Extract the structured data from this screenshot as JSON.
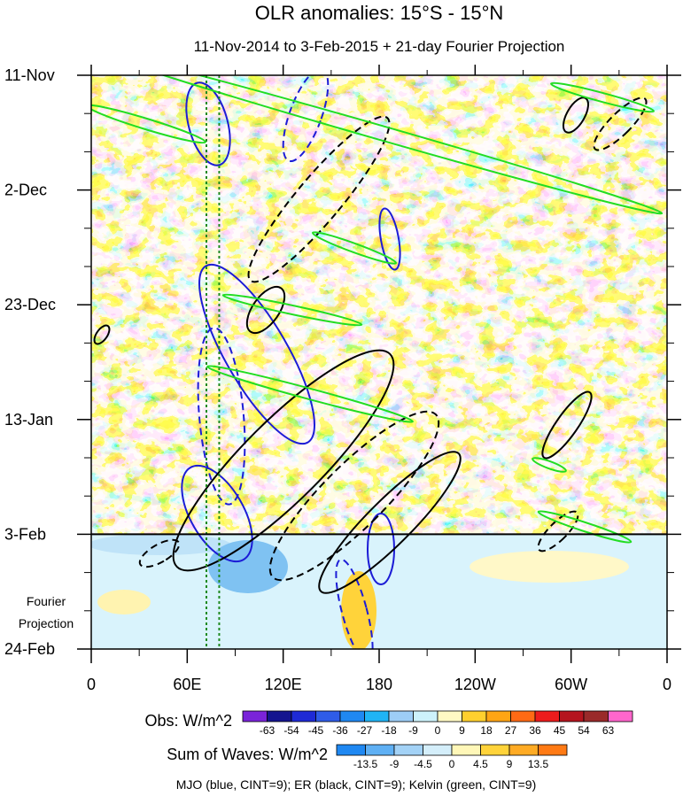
{
  "chart_data": {
    "type": "heatmap",
    "title": "OLR anomalies: 15°S - 15°N",
    "subtitle": "11-Nov-2014 to 3-Feb-2015 + 21-day Fourier Projection",
    "y_tick_labels": [
      "11-Nov",
      "2-Dec",
      "23-Dec",
      "13-Jan",
      "3-Feb",
      "24-Feb"
    ],
    "y_tick_days": [
      0,
      21,
      42,
      63,
      84,
      105
    ],
    "x_tick_labels": [
      "0",
      "60E",
      "120E",
      "180",
      "120W",
      "60W",
      "0"
    ],
    "x_tick_lons": [
      0,
      60,
      120,
      180,
      240,
      300,
      360
    ],
    "x_range": [
      0,
      360
    ],
    "y_range_days": [
      0,
      105
    ],
    "observation_end_day": 84,
    "projection_label_1": "Fourier",
    "projection_label_2": "Projection",
    "reference_longitudes": [
      72,
      80
    ],
    "obs_colorbar": {
      "label": "Obs: W/m^2",
      "ticks": [
        "-63",
        "-54",
        "-45",
        "-36",
        "-27",
        "-18",
        "-9",
        "0",
        "9",
        "18",
        "27",
        "36",
        "45",
        "54",
        "63"
      ],
      "colors": [
        "#7a23d9",
        "#14148f",
        "#1e2ad6",
        "#2f5ce8",
        "#1f88f2",
        "#20b4f5",
        "#9dcdf6",
        "#cdf2fb",
        "#fff9c4",
        "#ffd02e",
        "#ffa514",
        "#ff6a14",
        "#ed1c1c",
        "#b5141e",
        "#9a2a2a",
        "#ff66cc"
      ]
    },
    "waves_colorbar": {
      "label": "Sum of Waves: W/m^2",
      "ticks": [
        "-13.5",
        "-9",
        "-4.5",
        "0",
        "4.5",
        "9",
        "13.5"
      ],
      "colors": [
        "#1f88f2",
        "#5fb0f4",
        "#a3d2f6",
        "#d4eefa",
        "#fff7b8",
        "#ffd33a",
        "#ffab24",
        "#ff7a14"
      ]
    },
    "footer": "MJO (blue, CINT=9); ER (black, CINT=9); Kelvin (green, CINT=9)",
    "wave_colors": {
      "mjo": "#1c1cd6",
      "er": "#000000",
      "kelvin": "#22dd22",
      "reference": "#1f8a1f"
    }
  }
}
